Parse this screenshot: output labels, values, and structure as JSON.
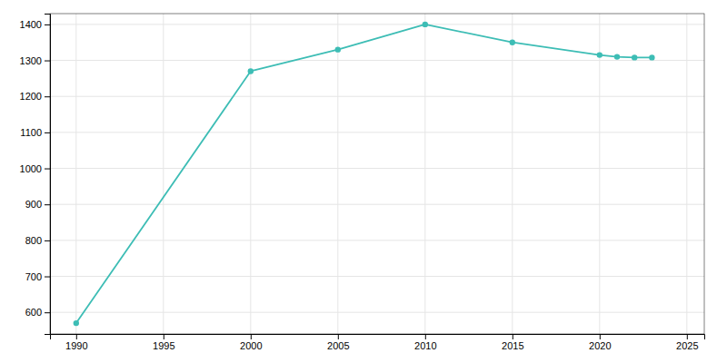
{
  "chart_data": {
    "type": "line",
    "x": [
      1990,
      2000,
      2005,
      2010,
      2015,
      2020,
      2021,
      2022,
      2023
    ],
    "values": [
      570,
      1270,
      1330,
      1400,
      1350,
      1315,
      1310,
      1308,
      1308
    ],
    "color": "#3dbdb5",
    "marker": "circle",
    "xlim": [
      1988.5,
      2026
    ],
    "ylim": [
      540,
      1430
    ],
    "xticks": [
      1990,
      1995,
      2000,
      2005,
      2010,
      2015,
      2020,
      2025
    ],
    "yticks": [
      600,
      700,
      800,
      900,
      1000,
      1100,
      1200,
      1300,
      1400
    ],
    "grid": true
  }
}
